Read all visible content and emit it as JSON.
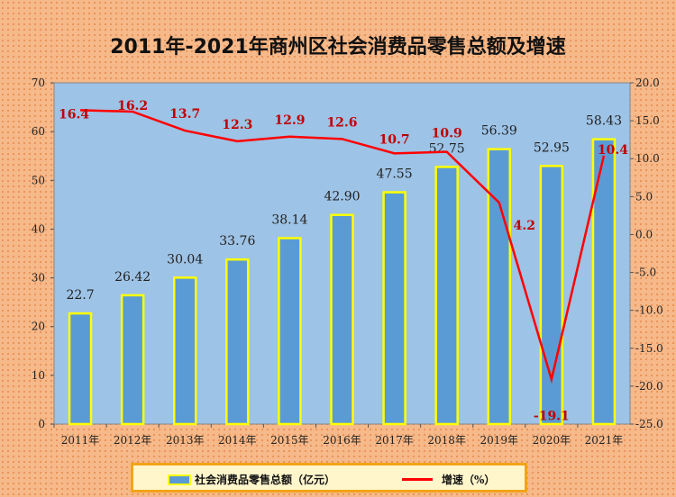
{
  "chart_data": {
    "type": "bar+line",
    "title": "2011年-2021年商州区社会消费品零售总额及增速",
    "categories": [
      "2011年",
      "2012年",
      "2013年",
      "2014年",
      "2015年",
      "2016年",
      "2017年",
      "2018年",
      "2019年",
      "2020年",
      "2021年"
    ],
    "series": [
      {
        "name": "社会消费品零售总额（亿元）",
        "type": "bar",
        "axis": "left",
        "values": [
          22.7,
          26.42,
          30.04,
          33.76,
          38.14,
          42.9,
          47.55,
          52.75,
          56.39,
          52.95,
          58.43
        ],
        "labels": [
          "22.7",
          "26.42",
          "30.04",
          "33.76",
          "38.14",
          "42.90",
          "47.55",
          "52.75",
          "56.39",
          "52.95",
          "58.43"
        ],
        "color": "#5b9bd5",
        "border_color": "#ffff00"
      },
      {
        "name": "增速（%）",
        "type": "line",
        "axis": "right",
        "values": [
          16.4,
          16.2,
          13.7,
          12.3,
          12.9,
          12.6,
          10.7,
          10.9,
          4.2,
          -19.1,
          10.4
        ],
        "labels": [
          "16.4",
          "16.2",
          "13.7",
          "12.3",
          "12.9",
          "12.6",
          "10.7",
          "10.9",
          "4.2",
          "-19.1",
          "10.4"
        ],
        "color": "#ff0000"
      }
    ],
    "y_left": {
      "ylim": [
        0,
        70
      ],
      "ticks": [
        "0",
        "10",
        "20",
        "30",
        "40",
        "50",
        "60",
        "70"
      ]
    },
    "y_right": {
      "ylim": [
        -25,
        20
      ],
      "ticks": [
        "-25.0",
        "-20.0",
        "-15.0",
        "-10.0",
        "-5.0",
        "0.0",
        "5.0",
        "10.0",
        "15.0",
        "20.0"
      ]
    },
    "legend_position": "bottom",
    "plot_background": "#9dc3e6"
  }
}
